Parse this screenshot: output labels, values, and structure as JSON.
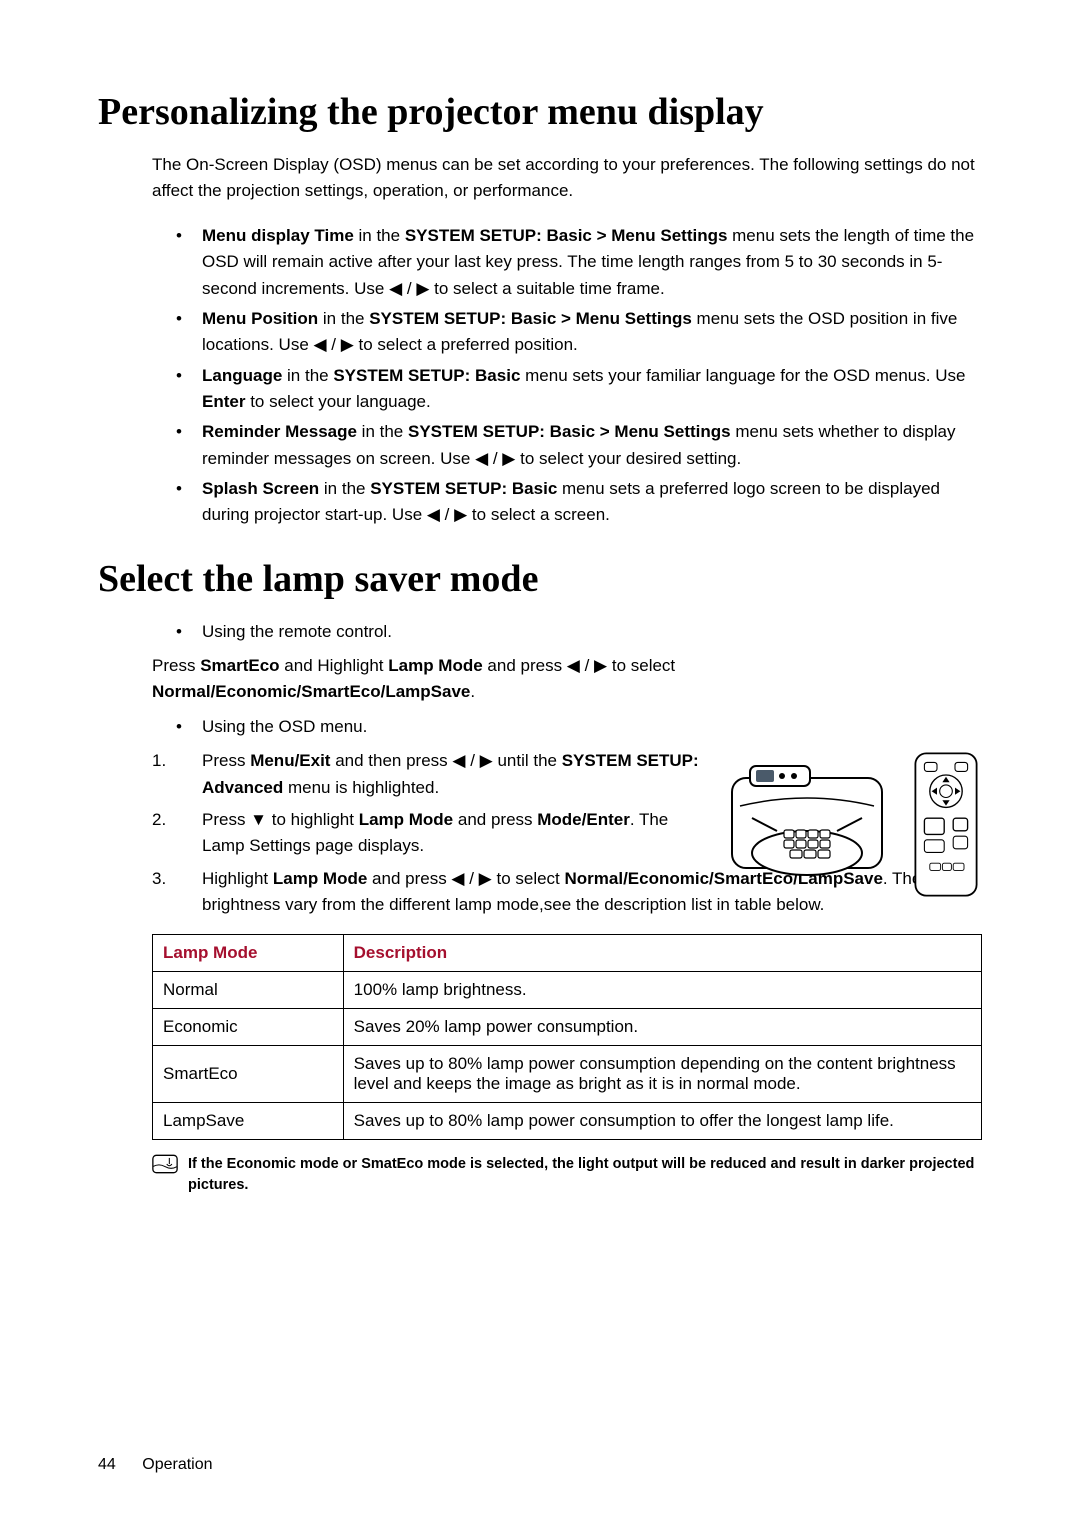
{
  "h1_a": "Personalizing the projector menu display",
  "intro": "The On-Screen Display (OSD) menus can be set according to your preferences. The following settings do not affect the projection settings, operation, or performance.",
  "bullets": [
    {
      "prefix": "Menu display Time",
      "mid": " in the ",
      "bold2": "SYSTEM SETUP: Basic > Menu Settings",
      "tail": " menu sets the length of time the OSD will remain active after your last key press. The time length ranges from 5 to 30 seconds in 5-second increments. Use  ◀ / ▶  to select a suitable time frame."
    },
    {
      "prefix": "Menu Position",
      "mid": " in the ",
      "bold2": "SYSTEM SETUP: Basic > Menu Settings",
      "tail": " menu sets the OSD position in five locations. Use  ◀ / ▶  to select a preferred position."
    },
    {
      "prefix": "Language",
      "mid": " in the ",
      "bold2": "SYSTEM SETUP: Basic",
      "tail": " menu sets your familiar language for the OSD menus. Use ",
      "bold3": "Enter",
      "tail2": " to select your language."
    },
    {
      "prefix": "Reminder Message",
      "mid": " in the ",
      "bold2": "SYSTEM SETUP: Basic > Menu Settings",
      "tail": " menu sets whether to display reminder messages on screen. Use  ◀ / ▶  to select your desired setting."
    },
    {
      "prefix": "Splash Screen",
      "mid": " in the ",
      "bold2": "SYSTEM SETUP: Basic",
      "tail": " menu sets a preferred logo screen to be displayed during projector start-up. Use  ◀ / ▶  to select a screen."
    }
  ],
  "h1_b": "Select the lamp saver mode",
  "b2_bullet1": "Using the remote control.",
  "b2_line1a": "Press ",
  "b2_line1b": "SmartEco",
  "b2_line1c": " and Highlight ",
  "b2_line1d": "Lamp Mode",
  "b2_line1e": " and press  ◀ / ▶  to select ",
  "b2_line1f": "Normal/Economic/SmartEco/LampSave",
  "b2_line1g": ".",
  "b2_bullet2": "Using the OSD menu.",
  "ol": [
    {
      "n": "1.",
      "a": "Press ",
      "b": "Menu/Exit",
      "c": " and then press  ◀ / ▶  until the ",
      "d": "SYSTEM SETUP: Advanced",
      "e": " menu is highlighted."
    },
    {
      "n": "2.",
      "a": "Press  ▼  to highlight ",
      "b": "Lamp Mode",
      "c": " and press ",
      "d": "Mode/Enter",
      "e": ". The Lamp Settings page displays."
    },
    {
      "n": "3.",
      "a": "Highlight ",
      "b": "Lamp Mode",
      "c": " and press  ◀ / ▶  to select ",
      "d": "Normal/Economic/SmartEco/LampSave",
      "e": ". The lamp brightness vary from the different lamp mode,see the description list in table below."
    }
  ],
  "table": {
    "header": [
      "Lamp Mode",
      "Description"
    ],
    "rows": [
      [
        "Normal",
        "100% lamp brightness."
      ],
      [
        "Economic",
        "Saves 20% lamp power consumption."
      ],
      [
        "SmartEco",
        "Saves up to 80% lamp power consumption depending on the content brightness level and keeps the image as bright as it is in normal mode."
      ],
      [
        "LampSave",
        "Saves up to 80% lamp power consumption to offer the longest lamp life."
      ]
    ],
    "col_widths": [
      "23%",
      "77%"
    ],
    "header_color": "#a50f2e"
  },
  "note": "If the Economic mode or SmatEco mode is selected, the light output will be reduced and result in darker projected pictures.",
  "footer_page": "44",
  "footer_section": "Operation"
}
